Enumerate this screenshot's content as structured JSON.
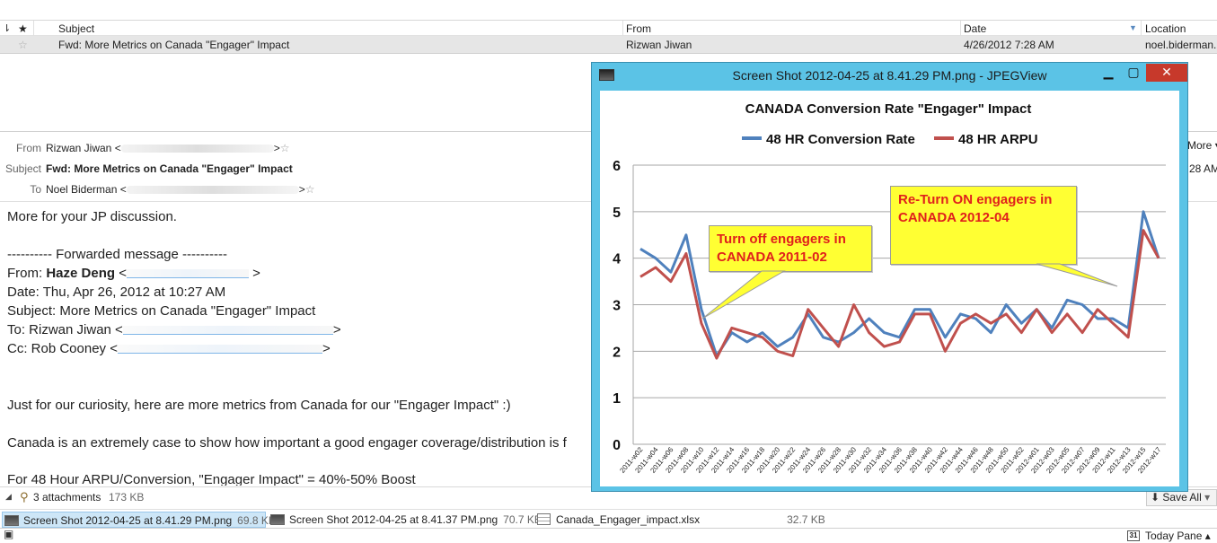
{
  "message_list": {
    "columns": {
      "flag": "",
      "star": "★",
      "subject": "Subject",
      "from": "From",
      "date": "Date",
      "location": "Location"
    },
    "row": {
      "star": "☆",
      "subject": "Fwd: More Metrics on Canada \"Engager\" Impact",
      "from": "Rizwan Jiwan",
      "date": "4/26/2012 7:28 AM",
      "location": "noel.biderman."
    }
  },
  "header": {
    "from_label": "From",
    "from_value": "Rizwan Jiwan <",
    "subject_label": "Subject",
    "subject_value": "Fwd: More Metrics on Canada \"Engager\" Impact",
    "to_label": "To",
    "to_value": "Noel Biderman <",
    "redact_close": ">",
    "more_label": "More",
    "time_partial": "28 AM"
  },
  "body": {
    "line1": "More for your JP discussion.",
    "fwd_sep": "---------- Forwarded message ----------",
    "from_prefix": "From: ",
    "from_name": "Haze Deng",
    "from_suffix": " <",
    "date_line": "Date: Thu, Apr 26, 2012 at 10:27 AM",
    "subject_line": "Subject: More Metrics on Canada \"Engager\" Impact",
    "to_line": "To: Rizwan Jiwan <",
    "cc_line": "Cc: Rob Cooney <",
    "para1": "Just for our curiosity, here are more metrics from Canada for our \"Engager Impact\" :)",
    "para2": "Canada is an extremely case to show how important a good engager coverage/distribution is f",
    "para3": "For 48 Hour ARPU/Conversion, \"Engager Impact\" = 40%-50% Boost"
  },
  "attachments": {
    "summary": "3 attachments",
    "total_size": "173 KB",
    "save_all": "Save All",
    "items": [
      {
        "name": "Screen Shot 2012-04-25 at 8.41.29 PM.png",
        "size": "69.8 KB"
      },
      {
        "name": "Screen Shot 2012-04-25 at 8.41.37 PM.png",
        "size": "70.7 KB"
      },
      {
        "name": "Canada_Engager_impact.xlsx",
        "size": "32.7 KB"
      }
    ]
  },
  "status_bar": {
    "today_pane": "Today Pane",
    "calendar_day": "31"
  },
  "viewer": {
    "title": "Screen Shot 2012-04-25 at 8.41.29 PM.png - JPEGView",
    "min": "▁",
    "max": "▢",
    "close": "✕"
  },
  "colors": {
    "series_blue": "#4f81bd",
    "series_red": "#c0504d",
    "callout_fill": "#ffff33",
    "callout_text": "#e0201c"
  },
  "chart_data": {
    "type": "line",
    "title": "CANADA Conversion Rate \"Engager\" Impact",
    "legend_position": "top",
    "ylim": [
      0,
      6
    ],
    "yticks": [
      0,
      1,
      2,
      3,
      4,
      5,
      6
    ],
    "grid": true,
    "x": [
      "2011-w02",
      "2011-w04",
      "2011-w06",
      "2011-w08",
      "2011-w10",
      "2011-w12",
      "2011-w14",
      "2011-w16",
      "2011-w18",
      "2011-w20",
      "2011-w22",
      "2011-w24",
      "2011-w26",
      "2011-w28",
      "2011-w30",
      "2011-w32",
      "2011-w34",
      "2011-w36",
      "2011-w38",
      "2011-w40",
      "2011-w42",
      "2011-w44",
      "2011-w46",
      "2011-w48",
      "2011-w50",
      "2011-w52",
      "2012-w01",
      "2012-w03",
      "2012-w05",
      "2012-w07",
      "2012-w09",
      "2012-w11",
      "2012-w13",
      "2012-w15",
      "2012-w17"
    ],
    "series": [
      {
        "name": "48 HR Conversion Rate",
        "values": [
          4.2,
          4.0,
          3.7,
          4.5,
          2.9,
          1.9,
          2.4,
          2.2,
          2.4,
          2.1,
          2.3,
          2.8,
          2.3,
          2.2,
          2.4,
          2.7,
          2.4,
          2.3,
          2.9,
          2.9,
          2.3,
          2.8,
          2.7,
          2.4,
          3.0,
          2.6,
          2.9,
          2.5,
          3.1,
          3.0,
          2.7,
          2.7,
          2.5,
          5.0,
          4.0
        ]
      },
      {
        "name": "48 HR ARPU",
        "values": [
          3.6,
          3.8,
          3.5,
          4.1,
          2.6,
          1.85,
          2.5,
          2.4,
          2.3,
          2.0,
          1.9,
          2.9,
          2.5,
          2.1,
          3.0,
          2.4,
          2.1,
          2.2,
          2.8,
          2.8,
          2.0,
          2.6,
          2.8,
          2.6,
          2.8,
          2.4,
          2.9,
          2.4,
          2.8,
          2.4,
          2.9,
          2.6,
          2.3,
          4.6,
          4.0
        ]
      }
    ],
    "annotations": [
      {
        "text": "Turn off engagers in CANADA 2011-02"
      },
      {
        "text": "Re-Turn ON engagers in CANADA 2012-04"
      }
    ]
  }
}
